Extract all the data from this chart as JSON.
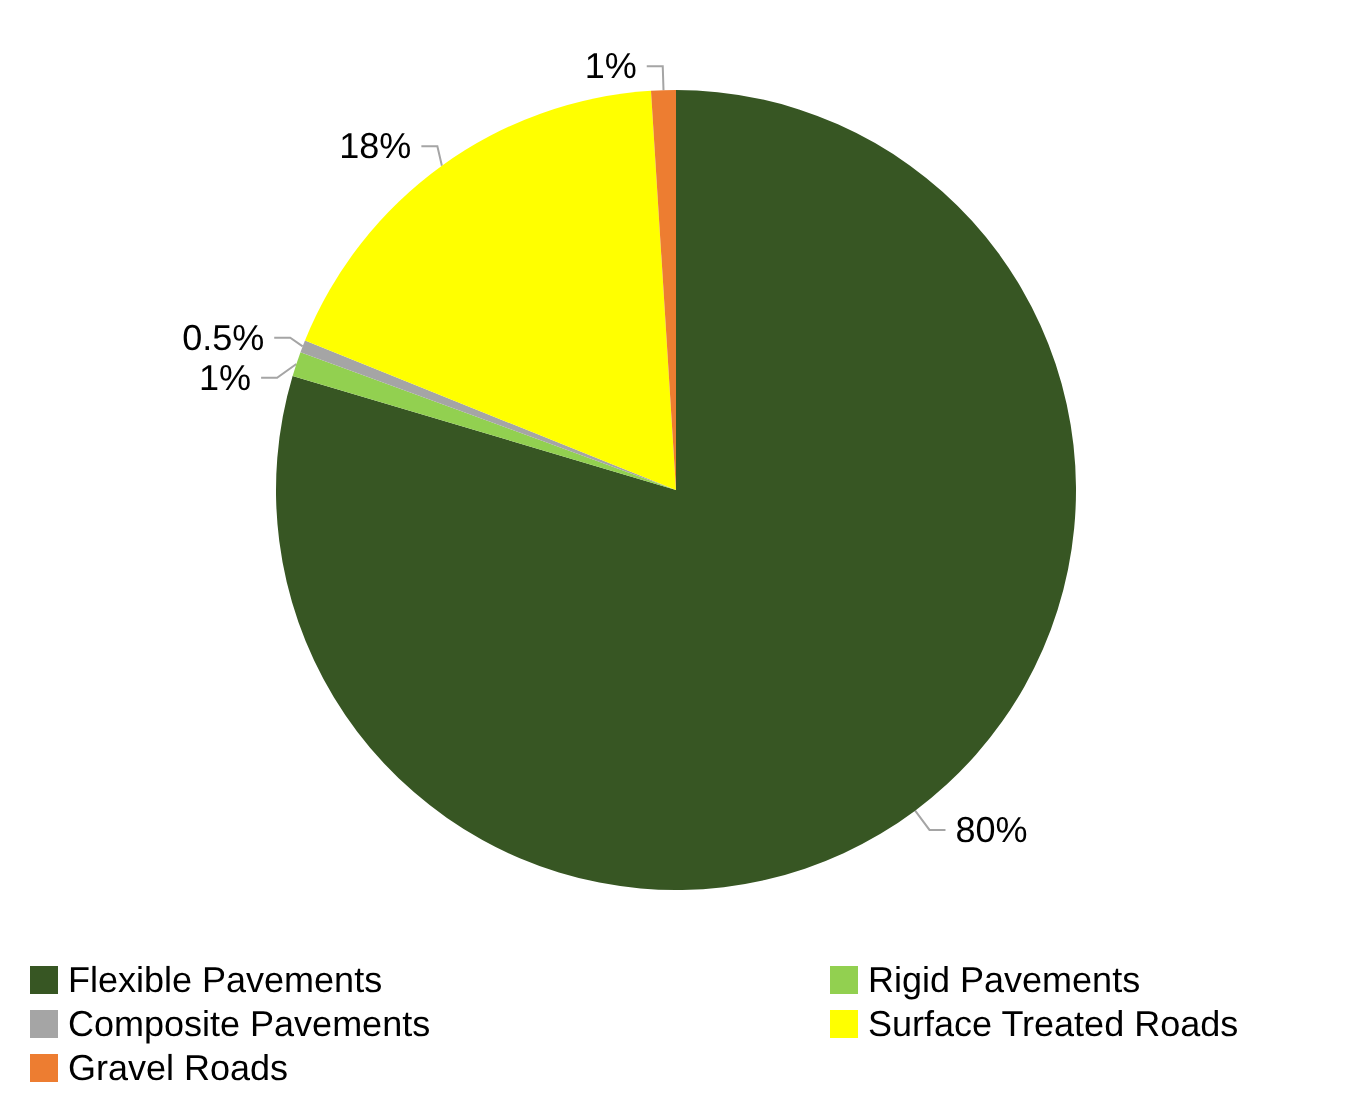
{
  "chart_data": {
    "type": "pie",
    "categories": [
      "Flexible Pavements",
      "Rigid Pavements",
      "Composite Pavements",
      "Surface Treated Roads",
      "Gravel Roads"
    ],
    "values": [
      80,
      1,
      0.5,
      18,
      1
    ],
    "colors": [
      "#375623",
      "#92d050",
      "#a5a5a5",
      "#ffff00",
      "#ed7d31"
    ],
    "value_labels": [
      "80%",
      "1%",
      "0.5%",
      "18%",
      "1%"
    ],
    "legend": "bottom"
  }
}
